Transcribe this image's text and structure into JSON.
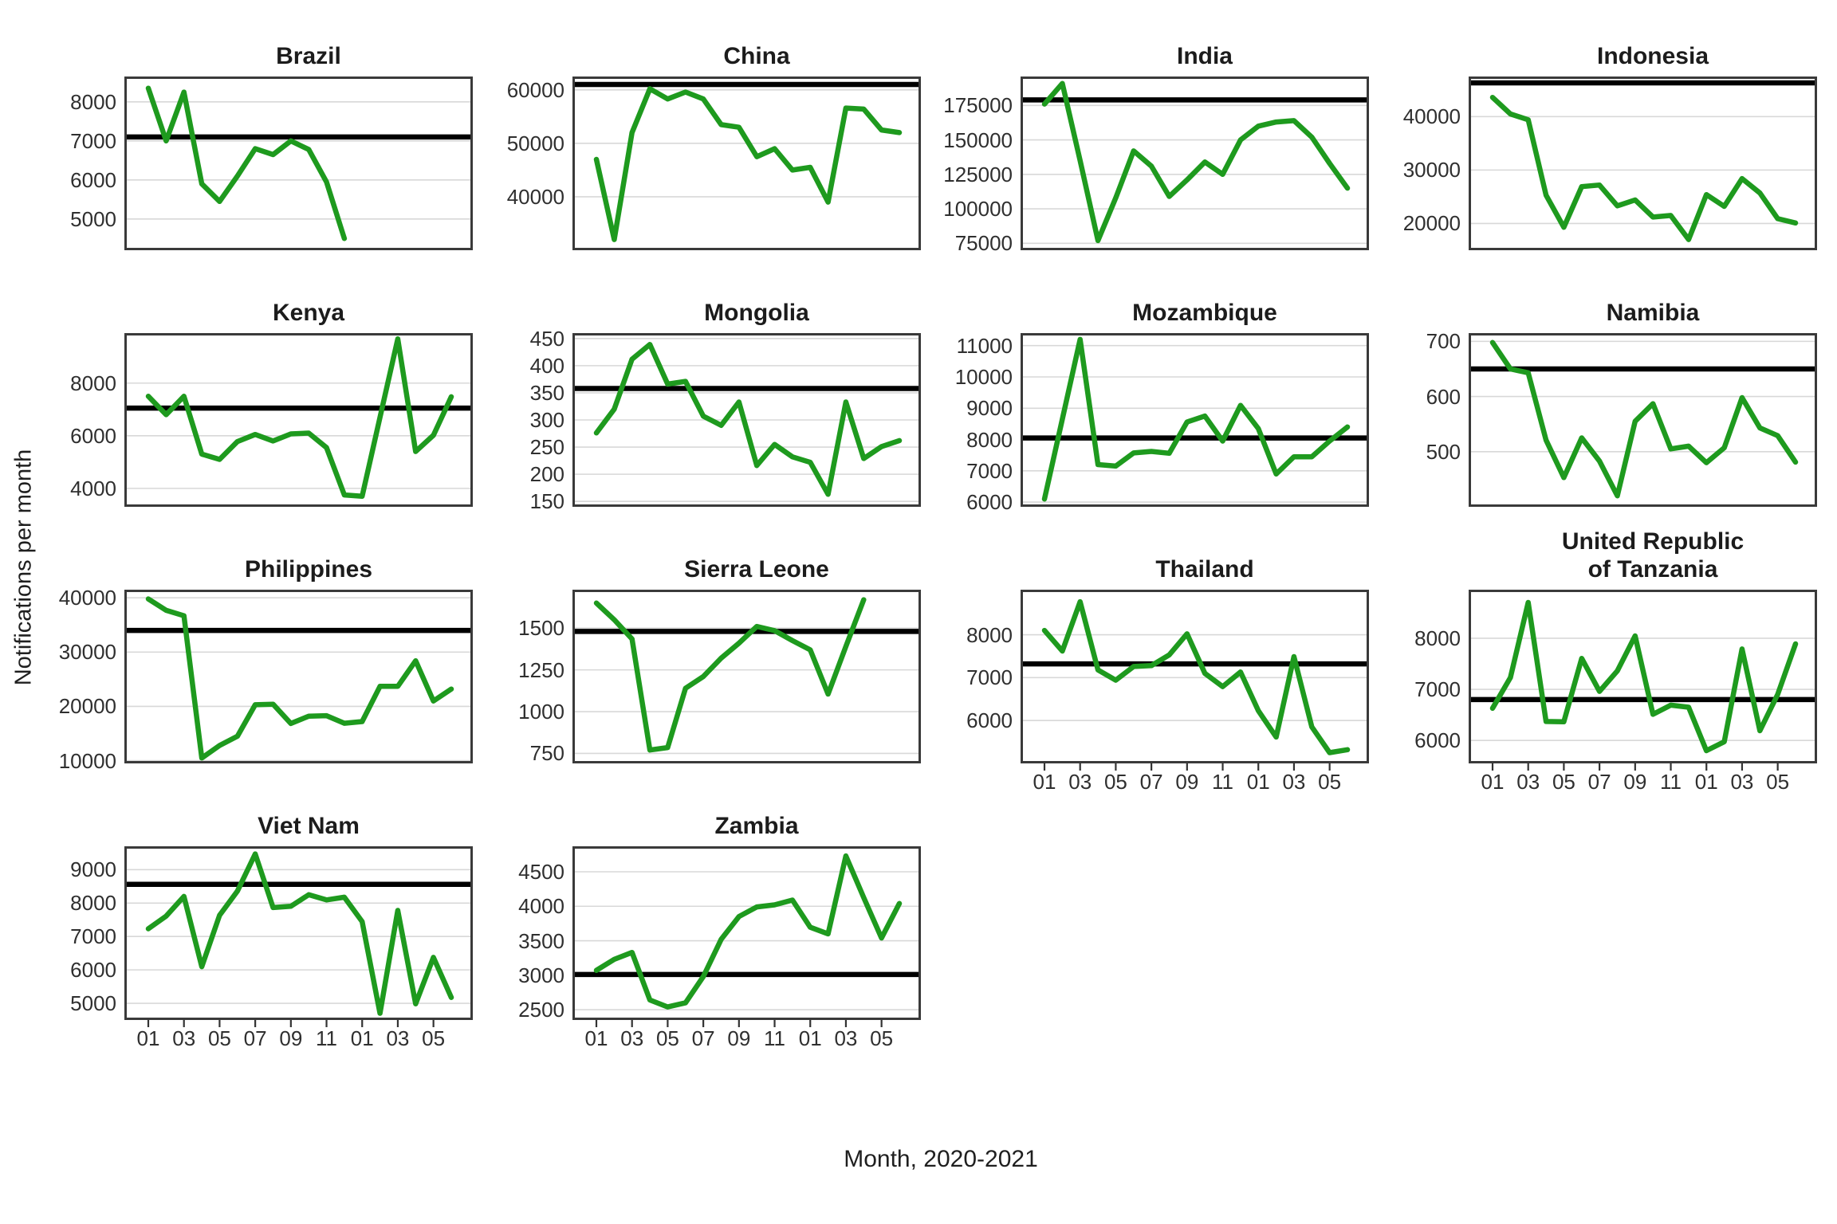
{
  "figure": {
    "y_axis_title": "Notifications per month",
    "x_axis_title": "Month, 2020-2021",
    "x_tick_labels": [
      "01",
      "03",
      "05",
      "07",
      "09",
      "11",
      "01",
      "03",
      "05"
    ],
    "x_tick_month_indices": [
      0,
      2,
      4,
      6,
      8,
      10,
      12,
      14,
      16
    ],
    "n_months": 18,
    "colors": {
      "series_line": "#1e9a1e",
      "reference_line": "#000000",
      "gridline": "#d8d8d8",
      "panel_border": "#3a3a3a",
      "axis_text": "#2f2f2f",
      "title_text": "#1c1c1c",
      "background": "#ffffff"
    }
  },
  "chart_data": [
    {
      "type": "line",
      "slug": "brazil",
      "title": "Brazil",
      "title_lines": [
        "Brazil"
      ],
      "yticks": [
        5000,
        6000,
        7000,
        8000
      ],
      "ylim": [
        4200,
        8650
      ],
      "reference": 7100,
      "x_axis": false,
      "values": [
        8350,
        7000,
        8250,
        5900,
        5450,
        6100,
        6800,
        6650,
        7000,
        6780,
        5950,
        4500
      ]
    },
    {
      "type": "line",
      "slug": "china",
      "title": "China",
      "title_lines": [
        "China"
      ],
      "yticks": [
        40000,
        50000,
        60000
      ],
      "ylim": [
        30000,
        62500
      ],
      "reference": 61000,
      "x_axis": false,
      "values": [
        47000,
        32000,
        52000,
        60200,
        58300,
        59600,
        58300,
        53500,
        53000,
        47500,
        49000,
        45000,
        45500,
        39000,
        56600,
        56400,
        52500,
        52000
      ]
    },
    {
      "type": "line",
      "slug": "india",
      "title": "India",
      "title_lines": [
        "India"
      ],
      "yticks": [
        75000,
        100000,
        125000,
        150000,
        175000
      ],
      "ylim": [
        70000,
        196000
      ],
      "reference": 179000,
      "x_axis": false,
      "values": [
        176000,
        191000,
        135000,
        77000,
        108000,
        142000,
        131000,
        109000,
        121000,
        134000,
        125000,
        150000,
        160000,
        163000,
        164000,
        152000,
        133000,
        115000
      ]
    },
    {
      "type": "line",
      "slug": "indonesia",
      "title": "Indonesia",
      "title_lines": [
        "Indonesia"
      ],
      "yticks": [
        20000,
        30000,
        40000
      ],
      "ylim": [
        15000,
        47500
      ],
      "reference": 46300,
      "x_axis": false,
      "values": [
        43600,
        40500,
        39400,
        25300,
        19300,
        26900,
        27200,
        23300,
        24400,
        21200,
        21500,
        17000,
        25400,
        23200,
        28400,
        25700,
        20900,
        20100
      ]
    },
    {
      "type": "line",
      "slug": "kenya",
      "title": "Kenya",
      "title_lines": [
        "Kenya"
      ],
      "yticks": [
        4000,
        6000,
        8000
      ],
      "ylim": [
        3300,
        9900
      ],
      "reference": 7050,
      "x_axis": false,
      "values": [
        7500,
        6800,
        7500,
        5300,
        5100,
        5780,
        6050,
        5800,
        6070,
        6100,
        5550,
        3750,
        3700,
        6700,
        9680,
        5400,
        6020,
        7480
      ]
    },
    {
      "type": "line",
      "slug": "mongolia",
      "title": "Mongolia",
      "title_lines": [
        "Mongolia"
      ],
      "yticks": [
        150,
        200,
        250,
        300,
        350,
        400,
        450
      ],
      "ylim": [
        140,
        460
      ],
      "reference": 358,
      "x_axis": false,
      "values": [
        276,
        320,
        412,
        439,
        366,
        371,
        307,
        290,
        333,
        216,
        255,
        232,
        222,
        163,
        333,
        229,
        251,
        262
      ]
    },
    {
      "type": "line",
      "slug": "mozambique",
      "title": "Mozambique",
      "title_lines": [
        "Mozambique"
      ],
      "yticks": [
        6000,
        7000,
        8000,
        9000,
        10000,
        11000
      ],
      "ylim": [
        5850,
        11400
      ],
      "reference": 8050,
      "x_axis": false,
      "values": [
        6100,
        8650,
        11200,
        7200,
        7150,
        7570,
        7620,
        7560,
        8560,
        8750,
        7950,
        9090,
        8350,
        6900,
        7450,
        7450,
        7950,
        8400
      ]
    },
    {
      "type": "line",
      "slug": "namibia",
      "title": "Namibia",
      "title_lines": [
        "Namibia"
      ],
      "yticks": [
        500,
        600,
        700
      ],
      "ylim": [
        400,
        715
      ],
      "reference": 650,
      "x_axis": false,
      "values": [
        698,
        650,
        643,
        521,
        453,
        525,
        483,
        420,
        555,
        587,
        505,
        510,
        480,
        507,
        598,
        543,
        529,
        481
      ]
    },
    {
      "type": "line",
      "slug": "philippines",
      "title": "Philippines",
      "title_lines": [
        "Philippines"
      ],
      "yticks": [
        10000,
        20000,
        30000,
        40000
      ],
      "ylim": [
        9500,
        41500
      ],
      "reference": 34000,
      "x_axis": false,
      "values": [
        39800,
        37700,
        36700,
        10500,
        12800,
        14500,
        20300,
        20400,
        16850,
        18200,
        18300,
        16900,
        17200,
        23700,
        23700,
        28400,
        21000,
        23200
      ]
    },
    {
      "type": "line",
      "slug": "sierra-leone",
      "title": "Sierra Leone",
      "title_lines": [
        "Sierra Leone"
      ],
      "yticks": [
        750,
        1000,
        1250,
        1500
      ],
      "ylim": [
        690,
        1730
      ],
      "reference": 1480,
      "x_axis": false,
      "values": [
        1650,
        1550,
        1435,
        770,
        785,
        1140,
        1210,
        1320,
        1410,
        1510,
        1485,
        1425,
        1370,
        1105,
        1390,
        1670
      ]
    },
    {
      "type": "line",
      "slug": "thailand",
      "title": "Thailand",
      "title_lines": [
        "Thailand"
      ],
      "yticks": [
        6000,
        7000,
        8000
      ],
      "ylim": [
        5000,
        9050
      ],
      "reference": 7320,
      "x_axis": true,
      "values": [
        8100,
        7620,
        8770,
        7180,
        6940,
        7260,
        7280,
        7530,
        8020,
        7100,
        6790,
        7130,
        6230,
        5615,
        7490,
        5850,
        5250,
        5320
      ]
    },
    {
      "type": "line",
      "slug": "united-republic-of-tanzania",
      "title": "United Republic of Tanzania",
      "title_lines": [
        "United Republic",
        "of Tanzania"
      ],
      "yticks": [
        6000,
        7000,
        8000
      ],
      "ylim": [
        5550,
        8950
      ],
      "reference": 6800,
      "x_axis": true,
      "values": [
        6630,
        7230,
        8700,
        6370,
        6365,
        7605,
        6960,
        7360,
        8045,
        6510,
        6690,
        6650,
        5800,
        5975,
        7790,
        6190,
        6900,
        7890
      ]
    },
    {
      "type": "line",
      "slug": "viet-nam",
      "title": "Viet Nam",
      "title_lines": [
        "Viet Nam"
      ],
      "yticks": [
        5000,
        6000,
        7000,
        8000,
        9000
      ],
      "ylim": [
        4500,
        9700
      ],
      "reference": 8560,
      "x_axis": true,
      "values": [
        7230,
        7610,
        8200,
        6095,
        7635,
        8360,
        9470,
        7865,
        7905,
        8250,
        8095,
        8175,
        7445,
        4700,
        7780,
        4985,
        6375,
        5175
      ]
    },
    {
      "type": "line",
      "slug": "zambia",
      "title": "Zambia",
      "title_lines": [
        "Zambia"
      ],
      "yticks": [
        2500,
        3000,
        3500,
        4000,
        4500
      ],
      "ylim": [
        2350,
        4870
      ],
      "reference": 3010,
      "x_axis": true,
      "values": [
        3070,
        3230,
        3330,
        2640,
        2540,
        2600,
        2980,
        3520,
        3850,
        3990,
        4020,
        4090,
        3695,
        3600,
        4730,
        4125,
        3540,
        4040
      ]
    }
  ]
}
